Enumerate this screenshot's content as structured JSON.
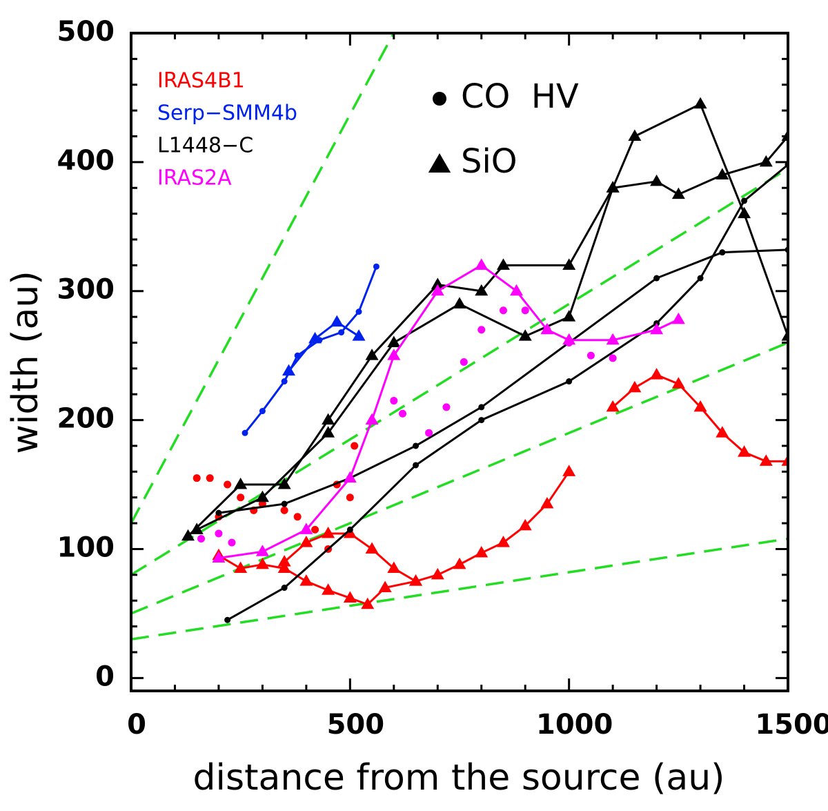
{
  "chart_data": {
    "type": "line",
    "xlabel": "distance from the source (au)",
    "ylabel": "width (au)",
    "xlim": [
      0,
      1500
    ],
    "ylim": [
      -10,
      500
    ],
    "xticks": [
      0,
      500,
      1000,
      1500
    ],
    "yticks": [
      0,
      100,
      200,
      300,
      400,
      500
    ],
    "xminorticks": [
      100,
      200,
      300,
      400,
      600,
      700,
      800,
      900,
      1100,
      1200,
      1300,
      1400
    ],
    "yminorticks": [
      20,
      40,
      60,
      80,
      120,
      140,
      160,
      180,
      220,
      240,
      260,
      280,
      320,
      340,
      360,
      380,
      420,
      440,
      460,
      480
    ],
    "marker_legend": [
      {
        "marker": "circle",
        "label": "CO  HV"
      },
      {
        "marker": "triangle",
        "label": "SiO"
      }
    ],
    "fit_lines": {
      "color": "#22dd22",
      "lines": [
        {
          "x": [
            0,
            650
          ],
          "values": [
            120,
            532
          ]
        },
        {
          "x": [
            0,
            1500
          ],
          "values": [
            80,
            395
          ]
        },
        {
          "x": [
            0,
            1500
          ],
          "values": [
            50,
            260
          ]
        },
        {
          "x": [
            0,
            1500
          ],
          "values": [
            30,
            108
          ]
        }
      ]
    },
    "series": [
      {
        "name": "IRAS4B1",
        "color": "#ff0000",
        "marker": "triangle",
        "line": true,
        "x": [
          200,
          250,
          300,
          350,
          400,
          450,
          500,
          540,
          580,
          650,
          700,
          750,
          800,
          850,
          900,
          950,
          1000
        ],
        "values": [
          95,
          85,
          88,
          85,
          75,
          68,
          62,
          57,
          70,
          75,
          80,
          88,
          97,
          105,
          118,
          135,
          160
        ]
      },
      {
        "name": "IRAS4B1",
        "color": "#ff0000",
        "marker": "triangle",
        "line": true,
        "x": [
          350,
          400,
          450,
          500,
          550,
          600,
          650
        ],
        "values": [
          90,
          105,
          112,
          112,
          100,
          85,
          75
        ]
      },
      {
        "name": "IRAS4B1",
        "color": "#ff0000",
        "marker": "triangle",
        "line": true,
        "x": [
          1100,
          1150,
          1200,
          1250,
          1300,
          1350,
          1400,
          1450,
          1500
        ],
        "values": [
          210,
          225,
          235,
          228,
          210,
          190,
          175,
          168,
          168
        ]
      },
      {
        "name": "IRAS4B1",
        "color": "#ff0000",
        "marker": "circle",
        "line": false,
        "x": [
          150,
          180,
          200,
          220,
          250,
          280,
          300,
          350,
          380,
          420,
          450,
          470,
          500,
          510
        ],
        "values": [
          155,
          155,
          125,
          150,
          140,
          130,
          135,
          130,
          125,
          115,
          100,
          150,
          140,
          180
        ]
      },
      {
        "name": "Serp−SMM4b",
        "color": "#0022ee",
        "marker": "circle",
        "line": true,
        "x": [
          260,
          300,
          350,
          380,
          430,
          480,
          520,
          560
        ],
        "values": [
          190,
          207,
          230,
          250,
          262,
          268,
          284,
          319
        ]
      },
      {
        "name": "Serp−SMM4b",
        "color": "#0022ee",
        "marker": "triangle",
        "line": true,
        "x": [
          360,
          420,
          470,
          520
        ],
        "values": [
          238,
          263,
          276,
          265
        ]
      },
      {
        "name": "L1448−C",
        "color": "#000000",
        "marker": "triangle",
        "line": true,
        "x": [
          130,
          250,
          350,
          450,
          550,
          700,
          800,
          850,
          1000,
          1100,
          1150,
          1300,
          1400,
          1500
        ],
        "values": [
          110,
          150,
          150,
          200,
          250,
          305,
          300,
          320,
          320,
          380,
          420,
          445,
          360,
          265
        ]
      },
      {
        "name": "L1448−C",
        "color": "#000000",
        "marker": "triangle",
        "line": true,
        "x": [
          150,
          300,
          450,
          600,
          750,
          900,
          1000,
          1100,
          1200,
          1250,
          1350,
          1450,
          1500
        ],
        "values": [
          115,
          140,
          190,
          260,
          290,
          265,
          280,
          380,
          385,
          375,
          390,
          400,
          420
        ]
      },
      {
        "name": "L1448−C",
        "color": "#000000",
        "marker": "circle",
        "line": true,
        "x": [
          200,
          350,
          500,
          650,
          800,
          1000,
          1200,
          1350,
          1500
        ],
        "values": [
          128,
          135,
          155,
          180,
          210,
          260,
          310,
          330,
          332
        ]
      },
      {
        "name": "L1448−C",
        "color": "#000000",
        "marker": "circle",
        "line": true,
        "x": [
          220,
          350,
          500,
          650,
          800,
          1000,
          1200,
          1300,
          1400,
          1500
        ],
        "values": [
          45,
          70,
          115,
          165,
          200,
          230,
          275,
          310,
          370,
          398
        ]
      },
      {
        "name": "IRAS2A",
        "color": "#ff00ff",
        "marker": "triangle",
        "line": true,
        "x": [
          200,
          300,
          400,
          500,
          550,
          600,
          700,
          800,
          880,
          950,
          1000,
          1100,
          1200,
          1250
        ],
        "values": [
          93,
          98,
          115,
          155,
          200,
          250,
          300,
          320,
          300,
          270,
          262,
          262,
          270,
          278
        ]
      },
      {
        "name": "IRAS2A",
        "color": "#ff00ff",
        "marker": "circle",
        "line": false,
        "x": [
          160,
          200,
          230,
          600,
          620,
          680,
          720,
          760,
          800,
          850,
          900,
          950,
          1000,
          1050,
          1100
        ],
        "values": [
          108,
          112,
          105,
          215,
          205,
          190,
          210,
          245,
          270,
          285,
          285,
          270,
          260,
          250,
          248
        ]
      }
    ]
  }
}
